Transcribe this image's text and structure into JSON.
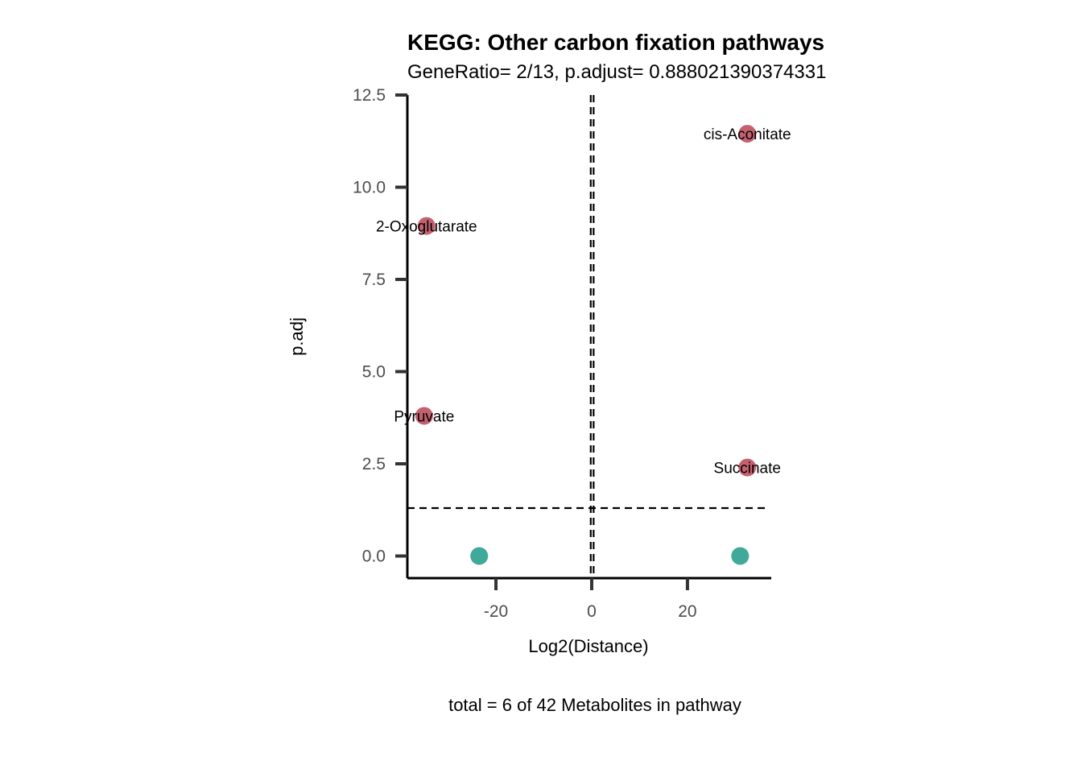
{
  "colors": {
    "up": "#C5616F",
    "not_significant": "#40A999",
    "axis": "#000000",
    "tick": "#333333",
    "tick_label": "#4d4d4d"
  },
  "chart_data": {
    "type": "scatter",
    "title": "KEGG: Other carbon fixation pathways",
    "subtitle": "GeneRatio= 2/13, p.adjust= 0.888021390374331",
    "xlabel": "Log2(Distance)",
    "ylabel": "p.adj",
    "caption": "total = 6 of 42 Metabolites in pathway",
    "xlim": [
      -38.5,
      37.5
    ],
    "ylim": [
      -0.6,
      12.5
    ],
    "x_ticks": [
      -20,
      0,
      20
    ],
    "x_tick_labels": [
      "-20",
      "0",
      "20"
    ],
    "y_ticks": [
      0,
      2.5,
      5,
      7.5,
      10,
      12.5
    ],
    "y_tick_labels": [
      "0.0",
      "2.5",
      "5.0",
      "7.5",
      "10.0",
      "12.5"
    ],
    "reference_lines": {
      "vertical": [
        -0.2,
        0.4
      ],
      "horizontal": [
        1.3
      ]
    },
    "grid": false,
    "legend": "none",
    "points": [
      {
        "label": "cis-Aconitate",
        "x": 32.5,
        "y": 11.45,
        "color": "#C5616F"
      },
      {
        "label": "2-Oxoglutarate",
        "x": -34.5,
        "y": 8.95,
        "color": "#C5616F"
      },
      {
        "label": "Pyruvate",
        "x": -35.0,
        "y": 3.8,
        "color": "#C5616F"
      },
      {
        "label": "Succinate",
        "x": 32.5,
        "y": 2.4,
        "color": "#C5616F"
      },
      {
        "label": "",
        "x": -23.5,
        "y": 0.0,
        "color": "#40A999"
      },
      {
        "label": "",
        "x": 31.0,
        "y": 0.0,
        "color": "#40A999"
      }
    ]
  }
}
